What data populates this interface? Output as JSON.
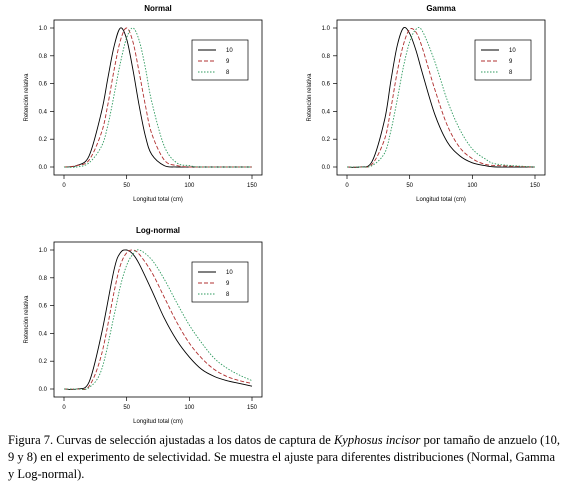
{
  "chart_data": [
    {
      "type": "line",
      "title": "Normal",
      "xlabel": "Longitud total (cm)",
      "ylabel": "Retención relativa",
      "xlim": [
        0,
        150
      ],
      "ylim": [
        0,
        1
      ],
      "xticks": [
        0,
        50,
        100,
        150
      ],
      "yticks": [
        0.0,
        0.2,
        0.4,
        0.6,
        0.8,
        1.0
      ],
      "legend_position": "top-right",
      "grid": false,
      "series": [
        {
          "name": "10",
          "color": "#000000",
          "dash": "solid",
          "x": [
            0,
            10,
            20,
            30,
            35,
            40,
            45,
            50,
            55,
            60,
            65,
            70,
            80,
            90,
            100,
            110,
            150
          ],
          "y": [
            0,
            0.01,
            0.08,
            0.4,
            0.64,
            0.87,
            1.0,
            0.92,
            0.7,
            0.44,
            0.22,
            0.09,
            0.01,
            0,
            0,
            0,
            0
          ]
        },
        {
          "name": "9",
          "color": "#b03030",
          "dash": "dashed",
          "x": [
            0,
            10,
            20,
            30,
            35,
            40,
            45,
            50,
            55,
            60,
            65,
            70,
            80,
            90,
            100,
            110,
            150
          ],
          "y": [
            0,
            0.01,
            0.05,
            0.25,
            0.45,
            0.7,
            0.91,
            1.0,
            0.9,
            0.68,
            0.44,
            0.24,
            0.05,
            0.01,
            0,
            0,
            0
          ]
        },
        {
          "name": "8",
          "color": "#2e9a5e",
          "dash": "dotted",
          "x": [
            0,
            10,
            20,
            30,
            35,
            40,
            45,
            50,
            55,
            60,
            65,
            70,
            80,
            90,
            100,
            110,
            150
          ],
          "y": [
            0,
            0,
            0.03,
            0.15,
            0.3,
            0.52,
            0.75,
            0.93,
            1.0,
            0.91,
            0.71,
            0.47,
            0.15,
            0.03,
            0.01,
            0,
            0
          ]
        }
      ]
    },
    {
      "type": "line",
      "title": "Gamma",
      "xlabel": "Longitud total (cm)",
      "ylabel": "Retención relativa",
      "xlim": [
        0,
        150
      ],
      "ylim": [
        0,
        1
      ],
      "xticks": [
        0,
        50,
        100,
        150
      ],
      "yticks": [
        0.0,
        0.2,
        0.4,
        0.6,
        0.8,
        1.0
      ],
      "legend_position": "top-right",
      "grid": false,
      "series": [
        {
          "name": "10",
          "color": "#000000",
          "dash": "solid",
          "x": [
            0,
            10,
            20,
            30,
            35,
            40,
            45,
            50,
            55,
            60,
            70,
            80,
            90,
            100,
            110,
            120,
            150
          ],
          "y": [
            0,
            0,
            0.04,
            0.34,
            0.62,
            0.87,
            1.0,
            0.96,
            0.84,
            0.68,
            0.38,
            0.18,
            0.08,
            0.03,
            0.01,
            0,
            0
          ]
        },
        {
          "name": "9",
          "color": "#b03030",
          "dash": "dashed",
          "x": [
            0,
            10,
            20,
            30,
            35,
            40,
            45,
            50,
            55,
            60,
            70,
            80,
            90,
            100,
            110,
            120,
            150
          ],
          "y": [
            0,
            0,
            0.02,
            0.2,
            0.42,
            0.68,
            0.88,
            0.99,
            0.97,
            0.86,
            0.56,
            0.3,
            0.14,
            0.06,
            0.02,
            0.01,
            0
          ]
        },
        {
          "name": "8",
          "color": "#2e9a5e",
          "dash": "dotted",
          "x": [
            0,
            10,
            20,
            30,
            35,
            40,
            45,
            50,
            55,
            60,
            70,
            80,
            90,
            100,
            110,
            120,
            150
          ],
          "y": [
            0,
            0,
            0.01,
            0.1,
            0.26,
            0.48,
            0.72,
            0.9,
            0.99,
            0.98,
            0.76,
            0.48,
            0.27,
            0.13,
            0.06,
            0.02,
            0
          ]
        }
      ]
    },
    {
      "type": "line",
      "title": "Log-normal",
      "xlabel": "Longitud total (cm)",
      "ylabel": "Retención relativa",
      "xlim": [
        0,
        150
      ],
      "ylim": [
        0,
        1
      ],
      "xticks": [
        0,
        50,
        100,
        150
      ],
      "yticks": [
        0.0,
        0.2,
        0.4,
        0.6,
        0.8,
        1.0
      ],
      "legend_position": "top-right",
      "grid": false,
      "series": [
        {
          "name": "10",
          "color": "#000000",
          "dash": "solid",
          "x": [
            0,
            10,
            20,
            30,
            40,
            45,
            50,
            55,
            60,
            70,
            80,
            90,
            100,
            110,
            120,
            130,
            140,
            150
          ],
          "y": [
            0,
            0,
            0.05,
            0.4,
            0.86,
            0.98,
            1.0,
            0.97,
            0.9,
            0.71,
            0.51,
            0.35,
            0.23,
            0.14,
            0.09,
            0.06,
            0.04,
            0.02
          ]
        },
        {
          "name": "9",
          "color": "#b03030",
          "dash": "dashed",
          "x": [
            0,
            10,
            20,
            30,
            40,
            45,
            50,
            55,
            60,
            70,
            80,
            90,
            100,
            110,
            120,
            130,
            140,
            150
          ],
          "y": [
            0,
            0,
            0.02,
            0.25,
            0.7,
            0.89,
            0.98,
            1.0,
            0.97,
            0.84,
            0.66,
            0.48,
            0.33,
            0.22,
            0.14,
            0.09,
            0.06,
            0.04
          ]
        },
        {
          "name": "8",
          "color": "#2e9a5e",
          "dash": "dotted",
          "x": [
            0,
            10,
            20,
            30,
            40,
            45,
            50,
            55,
            60,
            70,
            80,
            90,
            100,
            110,
            120,
            130,
            140,
            150
          ],
          "y": [
            0,
            0,
            0.01,
            0.14,
            0.53,
            0.74,
            0.89,
            0.97,
            1.0,
            0.93,
            0.79,
            0.62,
            0.46,
            0.33,
            0.22,
            0.15,
            0.1,
            0.06
          ]
        }
      ]
    }
  ],
  "caption": {
    "part1": "Figura 7. Curvas de selección ajustadas a los datos de captura de ",
    "species": "Kyphosus incisor",
    "part2": " por tamaño de anzuelo (10, 9 y 8) en el experimento de selectividad. Se muestra el ajuste para diferentes distribuciones (Normal, Gamma y Log-normal)."
  }
}
